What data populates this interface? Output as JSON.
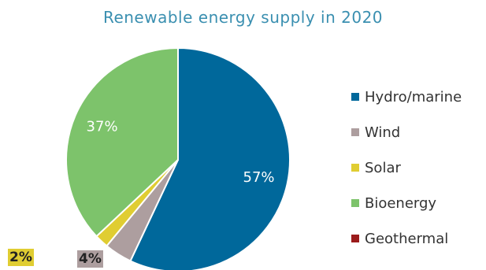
{
  "chart_data": {
    "type": "pie",
    "title": "Renewable energy supply in 2020",
    "slices": [
      {
        "name": "Hydro/marine",
        "value": 57,
        "label": "57%",
        "color": "#00689b"
      },
      {
        "name": "Wind",
        "value": 4,
        "label": "4%",
        "color": "#ad9e9f"
      },
      {
        "name": "Solar",
        "value": 2,
        "label": "2%",
        "color": "#e0cd32"
      },
      {
        "name": "Bioenergy",
        "value": 37,
        "label": "37%",
        "color": "#7dc36b"
      },
      {
        "name": "Geothermal",
        "value": 0,
        "label": "",
        "color": "#9b1b1b"
      }
    ],
    "legend_position": "right"
  }
}
